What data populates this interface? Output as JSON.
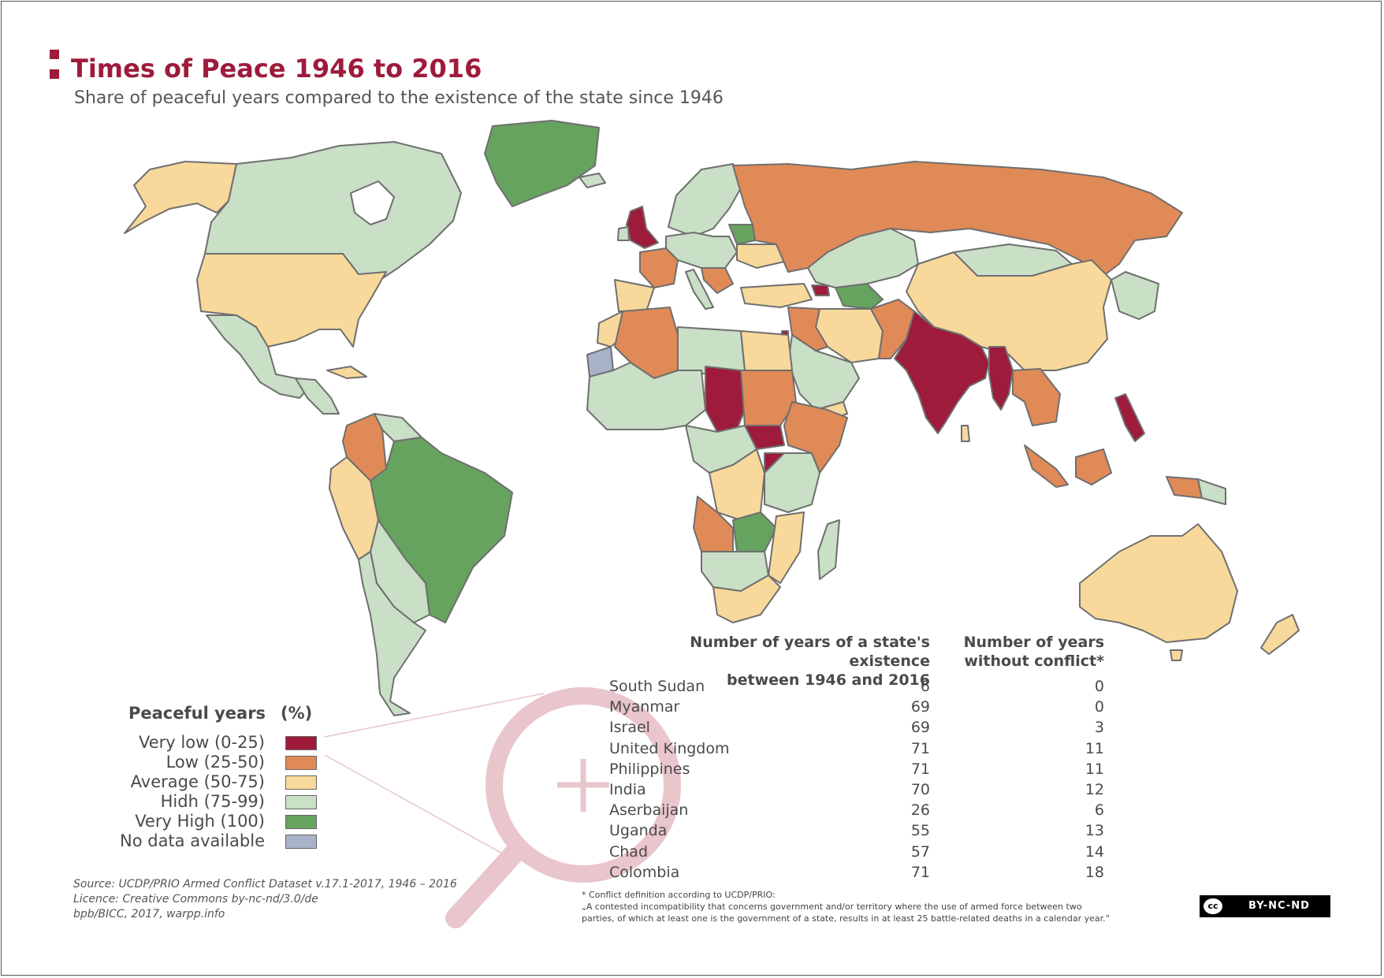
{
  "header": {
    "title": "Times of Peace 1946 to 2016",
    "subtitle": "Share of peaceful years compared to the existence of the state since 1946"
  },
  "colors": {
    "title": "#9e1b3b",
    "very_low": "#9e1b3b",
    "low": "#e08a57",
    "average": "#f8d99b",
    "high": "#c9dfc6",
    "very_high": "#66a35e",
    "no_data": "#a9b3c8",
    "border": "#6f6f6f",
    "magnifier": "#e9c5cc"
  },
  "legend": {
    "title": "Peaceful years",
    "unit": "(%)",
    "items": [
      {
        "label": "Very low (0-25)",
        "color": "#9e1b3b"
      },
      {
        "label": "Low (25-50)",
        "color": "#e08a57"
      },
      {
        "label": "Average (50-75)",
        "color": "#f8d99b"
      },
      {
        "label": "Hidh (75-99)",
        "color": "#c9dfc6"
      },
      {
        "label": "Very High (100)",
        "color": "#66a35e"
      },
      {
        "label": "No data available",
        "color": "#a9b3c8"
      }
    ]
  },
  "table": {
    "col_years_line1": "Number of years of a state's existence",
    "col_years_line2": "between 1946 and 2016",
    "col_peace_line1": "Number of years",
    "col_peace_line2": "without conflict*",
    "rows": [
      {
        "country": "South Sudan",
        "years": "6",
        "peace": "0"
      },
      {
        "country": "Myanmar",
        "years": "69",
        "peace": "0"
      },
      {
        "country": "Israel",
        "years": "69",
        "peace": "3"
      },
      {
        "country": "United Kingdom",
        "years": "71",
        "peace": "11"
      },
      {
        "country": "Philippines",
        "years": "71",
        "peace": "11"
      },
      {
        "country": "India",
        "years": "70",
        "peace": "12"
      },
      {
        "country": "Aserbaijan",
        "years": "26",
        "peace": "6"
      },
      {
        "country": "Uganda",
        "years": "55",
        "peace": "13"
      },
      {
        "country": "Chad",
        "years": "57",
        "peace": "14"
      },
      {
        "country": "Colombia",
        "years": "71",
        "peace": "18"
      }
    ]
  },
  "source": {
    "line1": "Source: UCDP/PRIO Armed Conflict Dataset v.17.1-2017, 1946 – 2016",
    "line2": "Licence: Creative Commons by-nc-nd/3.0/de",
    "line3": "bpb/BICC, 2017, warpp.info"
  },
  "footnote": {
    "line1": "* Conflict definition according to UCDP/PRIO:",
    "line2": "„A contested incompatibility that concerns government and/or territory where the use of armed force between two",
    "line3": "parties, of which at least one is the government of a state, results in at least 25 battle-related deaths in a calendar year.“"
  },
  "license_badge": {
    "icon": "cc",
    "text": "BY-NC-ND"
  }
}
